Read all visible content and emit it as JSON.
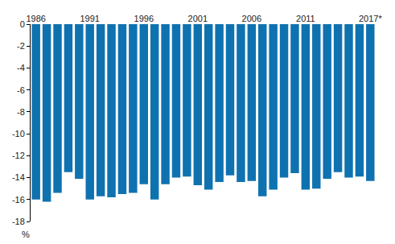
{
  "chart_data": {
    "type": "bar",
    "ylabel": "%",
    "categories": [
      "1986",
      null,
      null,
      null,
      null,
      "1991",
      null,
      null,
      null,
      null,
      "1996",
      null,
      null,
      null,
      null,
      "2001",
      null,
      null,
      null,
      null,
      "2006",
      null,
      null,
      null,
      null,
      "2011",
      null,
      null,
      null,
      null,
      null,
      "2017*"
    ],
    "values": [
      -16.0,
      -16.2,
      -15.4,
      -13.5,
      -14.1,
      -16.0,
      -15.7,
      -15.8,
      -15.5,
      -15.4,
      -14.6,
      -16.0,
      -14.6,
      -14.0,
      -13.9,
      -14.7,
      -15.1,
      -14.4,
      -13.8,
      -14.4,
      -14.3,
      -15.7,
      -15.1,
      -14.0,
      -13.6,
      -15.1,
      -15.0,
      -14.1,
      -13.5,
      -14.0,
      -13.9,
      -14.3
    ],
    "color": "#0f72b0",
    "ylim": [
      -18,
      0
    ],
    "yticks": [
      -18,
      -16,
      -14,
      -12,
      -10,
      -8,
      -6,
      -4,
      -2,
      0
    ],
    "grid": false
  }
}
